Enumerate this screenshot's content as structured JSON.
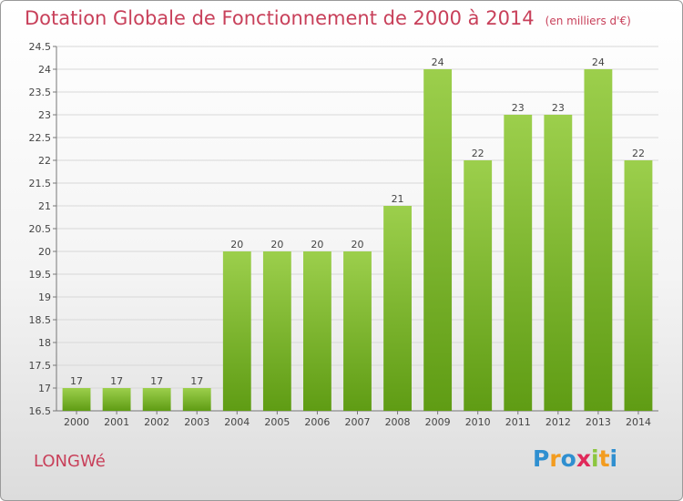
{
  "title": "Dotation Globale de Fonctionnement de 2000 à 2014",
  "subtitle": "(en milliers d'€)",
  "commune": "LONGWé",
  "logo": {
    "text": "Proxiti",
    "colors": [
      "#2f8fd0",
      "#f39c1f",
      "#2f8fd0",
      "#e0295a",
      "#8cc63f",
      "#f39c1f",
      "#2f8fd0"
    ]
  },
  "colors": {
    "title": "#c8405a",
    "bar_top": "#9ccf4c",
    "bar_bottom": "#5f9c14"
  },
  "chart_data": {
    "type": "bar",
    "categories": [
      "2000",
      "2001",
      "2002",
      "2003",
      "2004",
      "2005",
      "2006",
      "2007",
      "2008",
      "2009",
      "2010",
      "2011",
      "2012",
      "2013",
      "2014"
    ],
    "values": [
      17,
      17,
      17,
      17,
      20,
      20,
      20,
      20,
      21,
      24,
      22,
      23,
      23,
      24,
      22
    ],
    "value_labels": [
      "17",
      "17",
      "17",
      "17",
      "20",
      "20",
      "20",
      "20",
      "21",
      "24",
      "22",
      "23",
      "23",
      "24",
      "22"
    ],
    "title": "Dotation Globale de Fonctionnement de 2000 à 2014",
    "xlabel": "",
    "ylabel": "",
    "ylim": [
      16.5,
      24.5
    ],
    "yticks": [
      16.5,
      17,
      17.5,
      18,
      18.5,
      19,
      19.5,
      20,
      20.5,
      21,
      21.5,
      22,
      22.5,
      23,
      23.5,
      24,
      24.5
    ],
    "ytick_labels": [
      "16.5",
      "17",
      "17.5",
      "18",
      "18.5",
      "19",
      "19.5",
      "20",
      "20.5",
      "21",
      "21.5",
      "22",
      "22.5",
      "23",
      "23.5",
      "24",
      "24.5"
    ],
    "grid": true
  }
}
